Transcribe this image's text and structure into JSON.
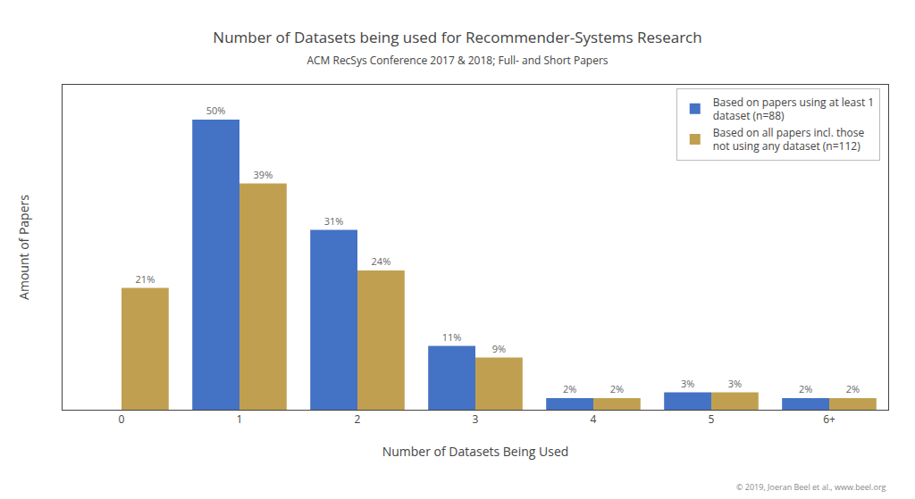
{
  "chart_data": {
    "type": "bar",
    "title": "Number of Datasets being used for Recommender-Systems Research",
    "subtitle": "ACM RecSys Conference 2017 & 2018; Full- and Short Papers",
    "xlabel": "Number of Datasets Being Used",
    "ylabel": "Amount of Papers",
    "categories": [
      "0",
      "1",
      "2",
      "3",
      "4",
      "5",
      "6+"
    ],
    "series": [
      {
        "name": "Based on papers using at least 1\ndataset (n=88)",
        "color": "#4472C4",
        "values": [
          0,
          50,
          31,
          11,
          2,
          3,
          2
        ],
        "value_labels": [
          null,
          "50%",
          "31%",
          "11%",
          "2%",
          "3%",
          "2%"
        ]
      },
      {
        "name": "Based on all papers incl. those\nnot using any dataset (n=112)",
        "color": "#C0A050",
        "values": [
          21,
          39,
          24,
          9,
          2,
          3,
          2
        ],
        "value_labels": [
          "21%",
          "39%",
          "24%",
          "9%",
          "2%",
          "3%",
          "2%"
        ]
      }
    ],
    "ylim": [
      0,
      56
    ],
    "grid": false,
    "legend": "upper right",
    "data_labels": true,
    "tick_labels": "x",
    "annotations": [
      "© 2019, Joeran Beel et al., www.beel.org"
    ]
  }
}
